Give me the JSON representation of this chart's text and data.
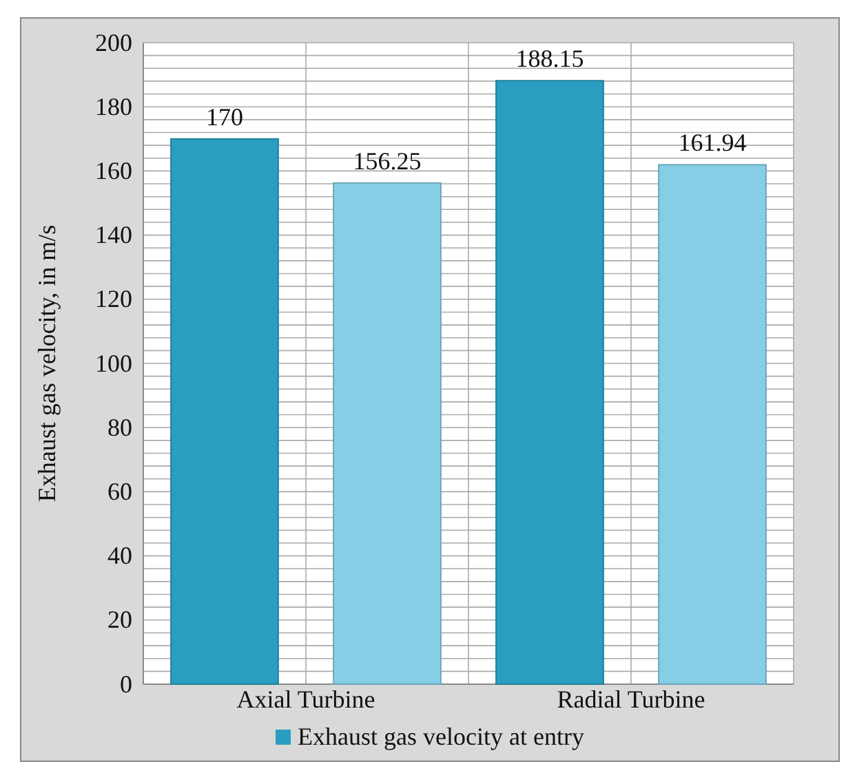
{
  "chart_data": {
    "type": "bar",
    "ylabel": "Exhaust gas velocity, in m/s",
    "categories": [
      "Axial Turbine",
      "Radial Turbine"
    ],
    "series": [
      {
        "name": "Exhaust gas velocity at entry",
        "color": "#2a9ec0",
        "values": [
          170,
          188.15
        ]
      },
      {
        "color": "#86cde6",
        "values": [
          156.25,
          161.94
        ]
      }
    ],
    "ylim": [
      0,
      200
    ],
    "yticks": [
      0,
      {
        "value": 4,
        "label": null
      },
      {
        "value": 8,
        "label": null
      },
      {
        "value": 12,
        "label": null
      },
      {
        "value": 16,
        "label": null
      },
      20,
      {
        "value": 24,
        "label": null
      },
      {
        "value": 28,
        "label": null
      },
      {
        "value": 32,
        "label": null
      },
      {
        "value": 36,
        "label": null
      },
      40,
      {
        "value": 44,
        "label": null
      },
      {
        "value": 48,
        "label": null
      },
      {
        "value": 52,
        "label": null
      },
      {
        "value": 56,
        "label": null
      },
      60,
      {
        "value": 64,
        "label": null
      },
      {
        "value": 68,
        "label": null
      },
      {
        "value": 72,
        "label": null
      },
      {
        "value": 76,
        "label": null
      },
      80,
      {
        "value": 84,
        "label": null
      },
      {
        "value": 88,
        "label": null
      },
      {
        "value": 92,
        "label": null
      },
      {
        "value": 96,
        "label": null
      },
      100,
      {
        "value": 104,
        "label": null
      },
      {
        "value": 108,
        "label": null
      },
      {
        "value": 112,
        "label": null
      },
      {
        "value": 116,
        "label": null
      },
      120,
      {
        "value": 124,
        "label": null
      },
      {
        "value": 128,
        "label": null
      },
      {
        "value": 132,
        "label": null
      },
      {
        "value": 136,
        "label": null
      },
      140,
      {
        "value": 144,
        "label": null
      },
      {
        "value": 148,
        "label": null
      },
      {
        "value": 152,
        "label": null
      },
      {
        "value": 156,
        "label": null
      },
      160,
      {
        "value": 164,
        "label": null
      },
      {
        "value": 168,
        "label": null
      },
      {
        "value": 172,
        "label": null
      },
      {
        "value": 176,
        "label": null
      },
      180,
      {
        "value": 184,
        "label": null
      },
      {
        "value": 188,
        "label": null
      },
      {
        "value": 192,
        "label": null
      },
      {
        "value": 196,
        "label": null
      },
      200
    ],
    "grid": true,
    "legend": "bottom",
    "data_labels": true
  }
}
